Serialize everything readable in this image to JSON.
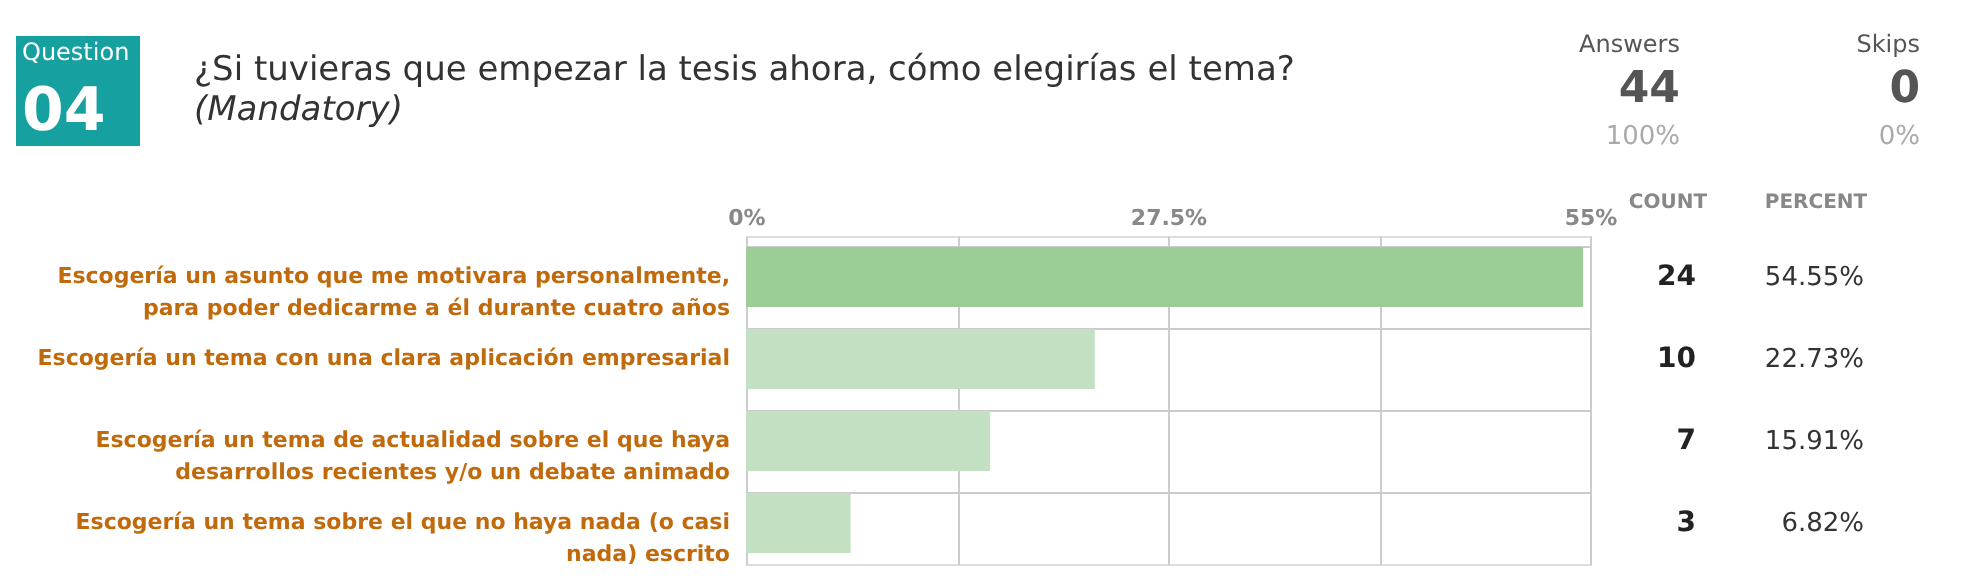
{
  "chart_data": {
    "type": "bar",
    "orientation": "horizontal",
    "title": "¿Si tuvieras que empezar la tesis ahora, cómo elegirías el tema?",
    "subtitle": "(Mandatory)",
    "categories": [
      "Escogería un asunto que me motivara personalmente,\npara poder dedicarme a él durante cuatro años",
      "Escogería un tema con una clara aplicación empresarial",
      "Escogería un tema de actualidad sobre el que haya\ndesarrollos recientes y/o un debate animado",
      "Escogería un tema sobre el que no haya nada (o casi\nnada) escrito"
    ],
    "values": [
      54.55,
      22.73,
      15.91,
      6.82
    ],
    "colors": [
      "#9dcd97",
      "#c4e0c2",
      "#c4e0c2",
      "#c4e0c2"
    ],
    "value_labels": [
      "54.55%",
      "22.73%",
      "15.91%",
      "6.82%"
    ],
    "xlim": [
      0,
      55
    ],
    "xticks": [
      {
        "value": 0,
        "label": "0%"
      },
      {
        "value": 13.75,
        "label": null
      },
      {
        "value": 27.5,
        "label": "27.5%"
      },
      {
        "value": 41.25,
        "label": null
      },
      {
        "value": 55,
        "label": "55%"
      }
    ],
    "grid": true,
    "annotations": [
      "Question",
      "04",
      "Answers",
      "44",
      "100%",
      "Skips",
      "0",
      "0%",
      "COUNT",
      "PERCENT",
      "24",
      "10",
      "7",
      "3"
    ]
  }
}
